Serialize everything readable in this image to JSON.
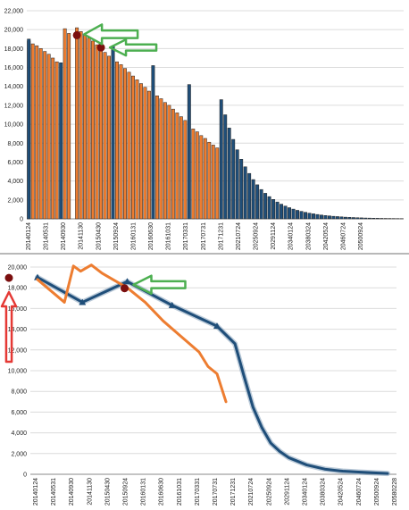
{
  "chart_data": [
    {
      "type": "bar",
      "title": "",
      "xlabel": "",
      "ylabel": "",
      "ylim": [
        0,
        22000
      ],
      "yticks": [
        "0",
        "2,000",
        "4,000",
        "6,000",
        "8,000",
        "10,000",
        "12,000",
        "14,000",
        "16,000",
        "18,000",
        "20,000",
        "22,000"
      ],
      "xtick_labels": [
        "20140124",
        "20140531",
        "20140930",
        "20141130",
        "20150430",
        "20150924",
        "20160131",
        "20160630",
        "20161031",
        "20170331",
        "20170731",
        "20171231",
        "20210724",
        "20250924",
        "20291124",
        "20340124",
        "20380324",
        "20420524",
        "20460724",
        "20500924"
      ],
      "grid": true,
      "legend": "none",
      "colors": {
        "orange": "#ed7d31",
        "blue": "#1f4e79",
        "marker": "#7b0f0f",
        "arrow": "#4caf50"
      },
      "series": [
        {
          "color": "orange",
          "values": [
            18800,
            18500,
            18300,
            18000,
            17700,
            17400,
            17000,
            16600,
            0,
            20100,
            19600,
            0,
            20200,
            19800,
            19400,
            19100,
            18800,
            18400,
            18000,
            17600,
            17200,
            0,
            16600,
            16300,
            15900,
            15500,
            15100,
            14700,
            14300,
            13900,
            13500,
            0,
            13000,
            12700,
            12300,
            12000,
            11600,
            11200,
            10800,
            10400,
            0,
            9500,
            9200,
            8800,
            8500,
            8100,
            7800,
            7500
          ]
        },
        {
          "color": "blue",
          "values": [
            19000,
            0,
            0,
            0,
            0,
            0,
            0,
            0,
            16500,
            0,
            0,
            0,
            0,
            0,
            0,
            0,
            0,
            0,
            0,
            0,
            0,
            18300,
            0,
            0,
            0,
            0,
            0,
            0,
            0,
            0,
            0,
            16200,
            0,
            0,
            0,
            0,
            0,
            0,
            0,
            0,
            14200,
            0,
            0,
            0,
            0,
            0,
            0,
            0,
            12600,
            11000,
            9600,
            8400,
            7300,
            6300,
            5500,
            4800,
            4150,
            3600,
            3100,
            2700,
            2350,
            2050,
            1780,
            1550,
            1350,
            1180,
            1030,
            900,
            790,
            690,
            600,
            530,
            460,
            400,
            350,
            310,
            270,
            240,
            210,
            180,
            160,
            140,
            120,
            105,
            90,
            80,
            70,
            60,
            50,
            45,
            40,
            35,
            30,
            25
          ]
        }
      ],
      "markers": [
        {
          "category_index": 12,
          "value": 19600
        },
        {
          "category_index": 18,
          "value": 18300
        }
      ]
    },
    {
      "type": "line",
      "title": "",
      "xlabel": "",
      "ylabel": "",
      "ylim": [
        0,
        20000
      ],
      "yticks": [
        "0",
        "2,000",
        "4,000",
        "6,000",
        "8,000",
        "10,000",
        "12,000",
        "14,000",
        "16,000",
        "18,000",
        "20,000"
      ],
      "xtick_labels": [
        "20140124",
        "20140531",
        "20140930",
        "20141130",
        "20150430",
        "20150924",
        "20160131",
        "20160630",
        "20161031",
        "20170331",
        "20170731",
        "20171231",
        "20210724",
        "20250924",
        "20291124",
        "20340124",
        "20380324",
        "20420524",
        "20460724",
        "20500924",
        "20580228"
      ],
      "grid": true,
      "legend": "none",
      "colors": {
        "orange": "#ed7d31",
        "blue": "#1f4e79",
        "marker": "#7b0f0f",
        "arrow_green": "#4caf50",
        "arrow_red": "#e53935"
      },
      "series": [
        {
          "color": "blue",
          "x": [
            0,
            2.5,
            5,
            7.5,
            10,
            11,
            11.5,
            12,
            12.5,
            13,
            13.5,
            14,
            15,
            16,
            17,
            18,
            19,
            19.5
          ],
          "y": [
            19000,
            16600,
            18600,
            16300,
            14300,
            12600,
            9500,
            6500,
            4500,
            3000,
            2200,
            1600,
            900,
            500,
            300,
            200,
            120,
            80
          ],
          "point_markers": [
            0,
            1,
            2,
            3,
            4
          ]
        },
        {
          "color": "orange",
          "x": [
            0,
            1.5,
            2,
            2.4,
            3,
            3.6,
            4.2,
            5,
            6,
            7,
            8,
            9,
            9.5,
            10,
            10.5
          ],
          "y": [
            18800,
            16600,
            20100,
            19600,
            20200,
            19400,
            18800,
            18000,
            16600,
            14800,
            13300,
            11800,
            10400,
            9700,
            7000
          ]
        }
      ],
      "markers": [
        {
          "x": 4.85,
          "value": 18300
        },
        {
          "x": -1.75,
          "value": 19300
        }
      ]
    }
  ]
}
